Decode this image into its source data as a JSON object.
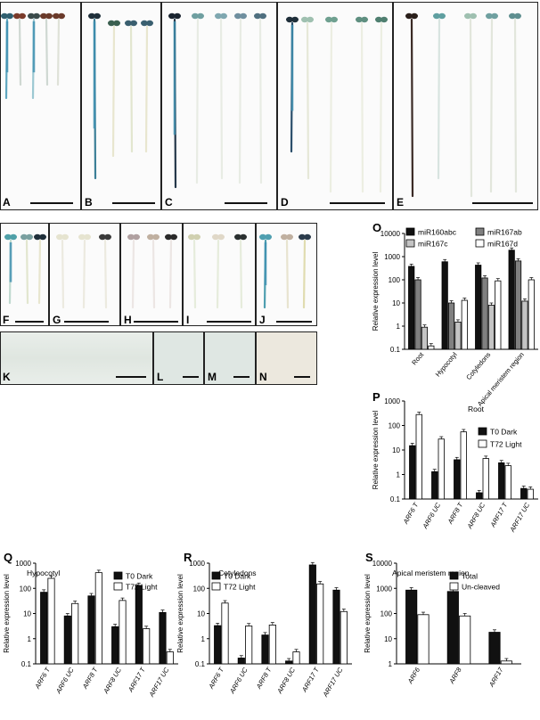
{
  "panel_labels": {
    "A": "A",
    "B": "B",
    "C": "C",
    "D": "D",
    "E": "E",
    "F": "F",
    "G": "G",
    "H": "H",
    "I": "I",
    "J": "J",
    "K": "K",
    "L": "L",
    "M": "M",
    "N": "N",
    "O": "O",
    "P": "P",
    "Q": "Q",
    "R": "R",
    "S": "S"
  },
  "chart_data": [
    {
      "id": "O",
      "type": "bar",
      "title": "",
      "xlabel": "",
      "ylabel": "Relative expression level",
      "yscale": "log",
      "ylim": [
        0.1,
        10000
      ],
      "yticks": [
        "0.1",
        "1",
        "10",
        "100",
        "1000",
        "10000"
      ],
      "categories": [
        "Root",
        "Hypocotyl",
        "Cotyledons",
        "Apical meristem region"
      ],
      "series": [
        {
          "name": "miR160abc",
          "color": "#111111",
          "values": [
            380,
            600,
            430,
            1900
          ]
        },
        {
          "name": "miR167ab",
          "color": "#808080",
          "values": [
            100,
            10,
            120,
            650
          ]
        },
        {
          "name": "miR167c",
          "color": "#c4c4c4",
          "values": [
            0.9,
            1.5,
            8,
            12
          ]
        },
        {
          "name": "miR167d",
          "color": "#ffffff",
          "values": [
            0.14,
            13,
            90,
            100
          ]
        }
      ],
      "legend": "top"
    },
    {
      "id": "P",
      "type": "bar",
      "title": "Root",
      "xlabel": "",
      "ylabel": "Relative expression level",
      "yscale": "log",
      "ylim": [
        0.1,
        1000
      ],
      "yticks": [
        "0.1",
        "1",
        "10",
        "100",
        "1000"
      ],
      "categories": [
        "ARF6 T",
        "ARF6 UC",
        "ARF8 T",
        "ARF8 UC",
        "ARF17 T",
        "ARF17 UC"
      ],
      "series": [
        {
          "name": "T0 Dark",
          "color": "#111111",
          "values": [
            15,
            1.3,
            4,
            0.18,
            3,
            0.27
          ]
        },
        {
          "name": "T72 Light",
          "color": "#ffffff",
          "values": [
            280,
            28,
            55,
            4.5,
            2.3,
            0.25
          ]
        }
      ],
      "legend": "right"
    },
    {
      "id": "Q",
      "type": "bar",
      "title": "Hypocotyl",
      "xlabel": "",
      "ylabel": "Relative expression level",
      "yscale": "log",
      "ylim": [
        0.1,
        1000
      ],
      "yticks": [
        "0.1",
        "1",
        "10",
        "100",
        "1000"
      ],
      "categories": [
        "ARF6 T",
        "ARF6 UC",
        "ARF8 T",
        "ARF8 UC",
        "ARF17 T",
        "ARF17 UC"
      ],
      "series": [
        {
          "name": "T0 Dark",
          "color": "#111111",
          "values": [
            70,
            8,
            50,
            3,
            130,
            11
          ]
        },
        {
          "name": "T72 Light",
          "color": "#ffffff",
          "values": [
            250,
            25,
            420,
            33,
            2.5,
            0.3
          ]
        }
      ],
      "legend": "top-right"
    },
    {
      "id": "R",
      "type": "bar",
      "title": "Cotyledons",
      "xlabel": "",
      "ylabel": "Relative expression level",
      "yscale": "log",
      "ylim": [
        0.1,
        1000
      ],
      "yticks": [
        "0.1",
        "1",
        "10",
        "100",
        "1000"
      ],
      "categories": [
        "ARF6 T",
        "ARF6 UC",
        "ARF8 T",
        "ARF8 UC",
        "ARF17 T",
        "ARF17 UC"
      ],
      "series": [
        {
          "name": "T0 Dark",
          "color": "#111111",
          "values": [
            3.3,
            0.17,
            1.4,
            0.13,
            850,
            85
          ]
        },
        {
          "name": "T72 Light",
          "color": "#ffffff",
          "values": [
            26,
            3.2,
            3.5,
            0.3,
            150,
            12
          ]
        }
      ],
      "legend": "top-left"
    },
    {
      "id": "S",
      "type": "bar",
      "title": "Apical meristem region",
      "xlabel": "",
      "ylabel": "Relative expression level",
      "yscale": "log",
      "ylim": [
        1,
        10000
      ],
      "yticks": [
        "1",
        "10",
        "100",
        "1000",
        "10000"
      ],
      "categories": [
        "ARF6",
        "ARF8",
        "ARF17"
      ],
      "series": [
        {
          "name": "Total",
          "color": "#111111",
          "values": [
            850,
            750,
            18
          ]
        },
        {
          "name": "Un-cleaved",
          "color": "#ffffff",
          "values": [
            90,
            80,
            1.3
          ]
        }
      ],
      "legend": "top-right"
    }
  ]
}
